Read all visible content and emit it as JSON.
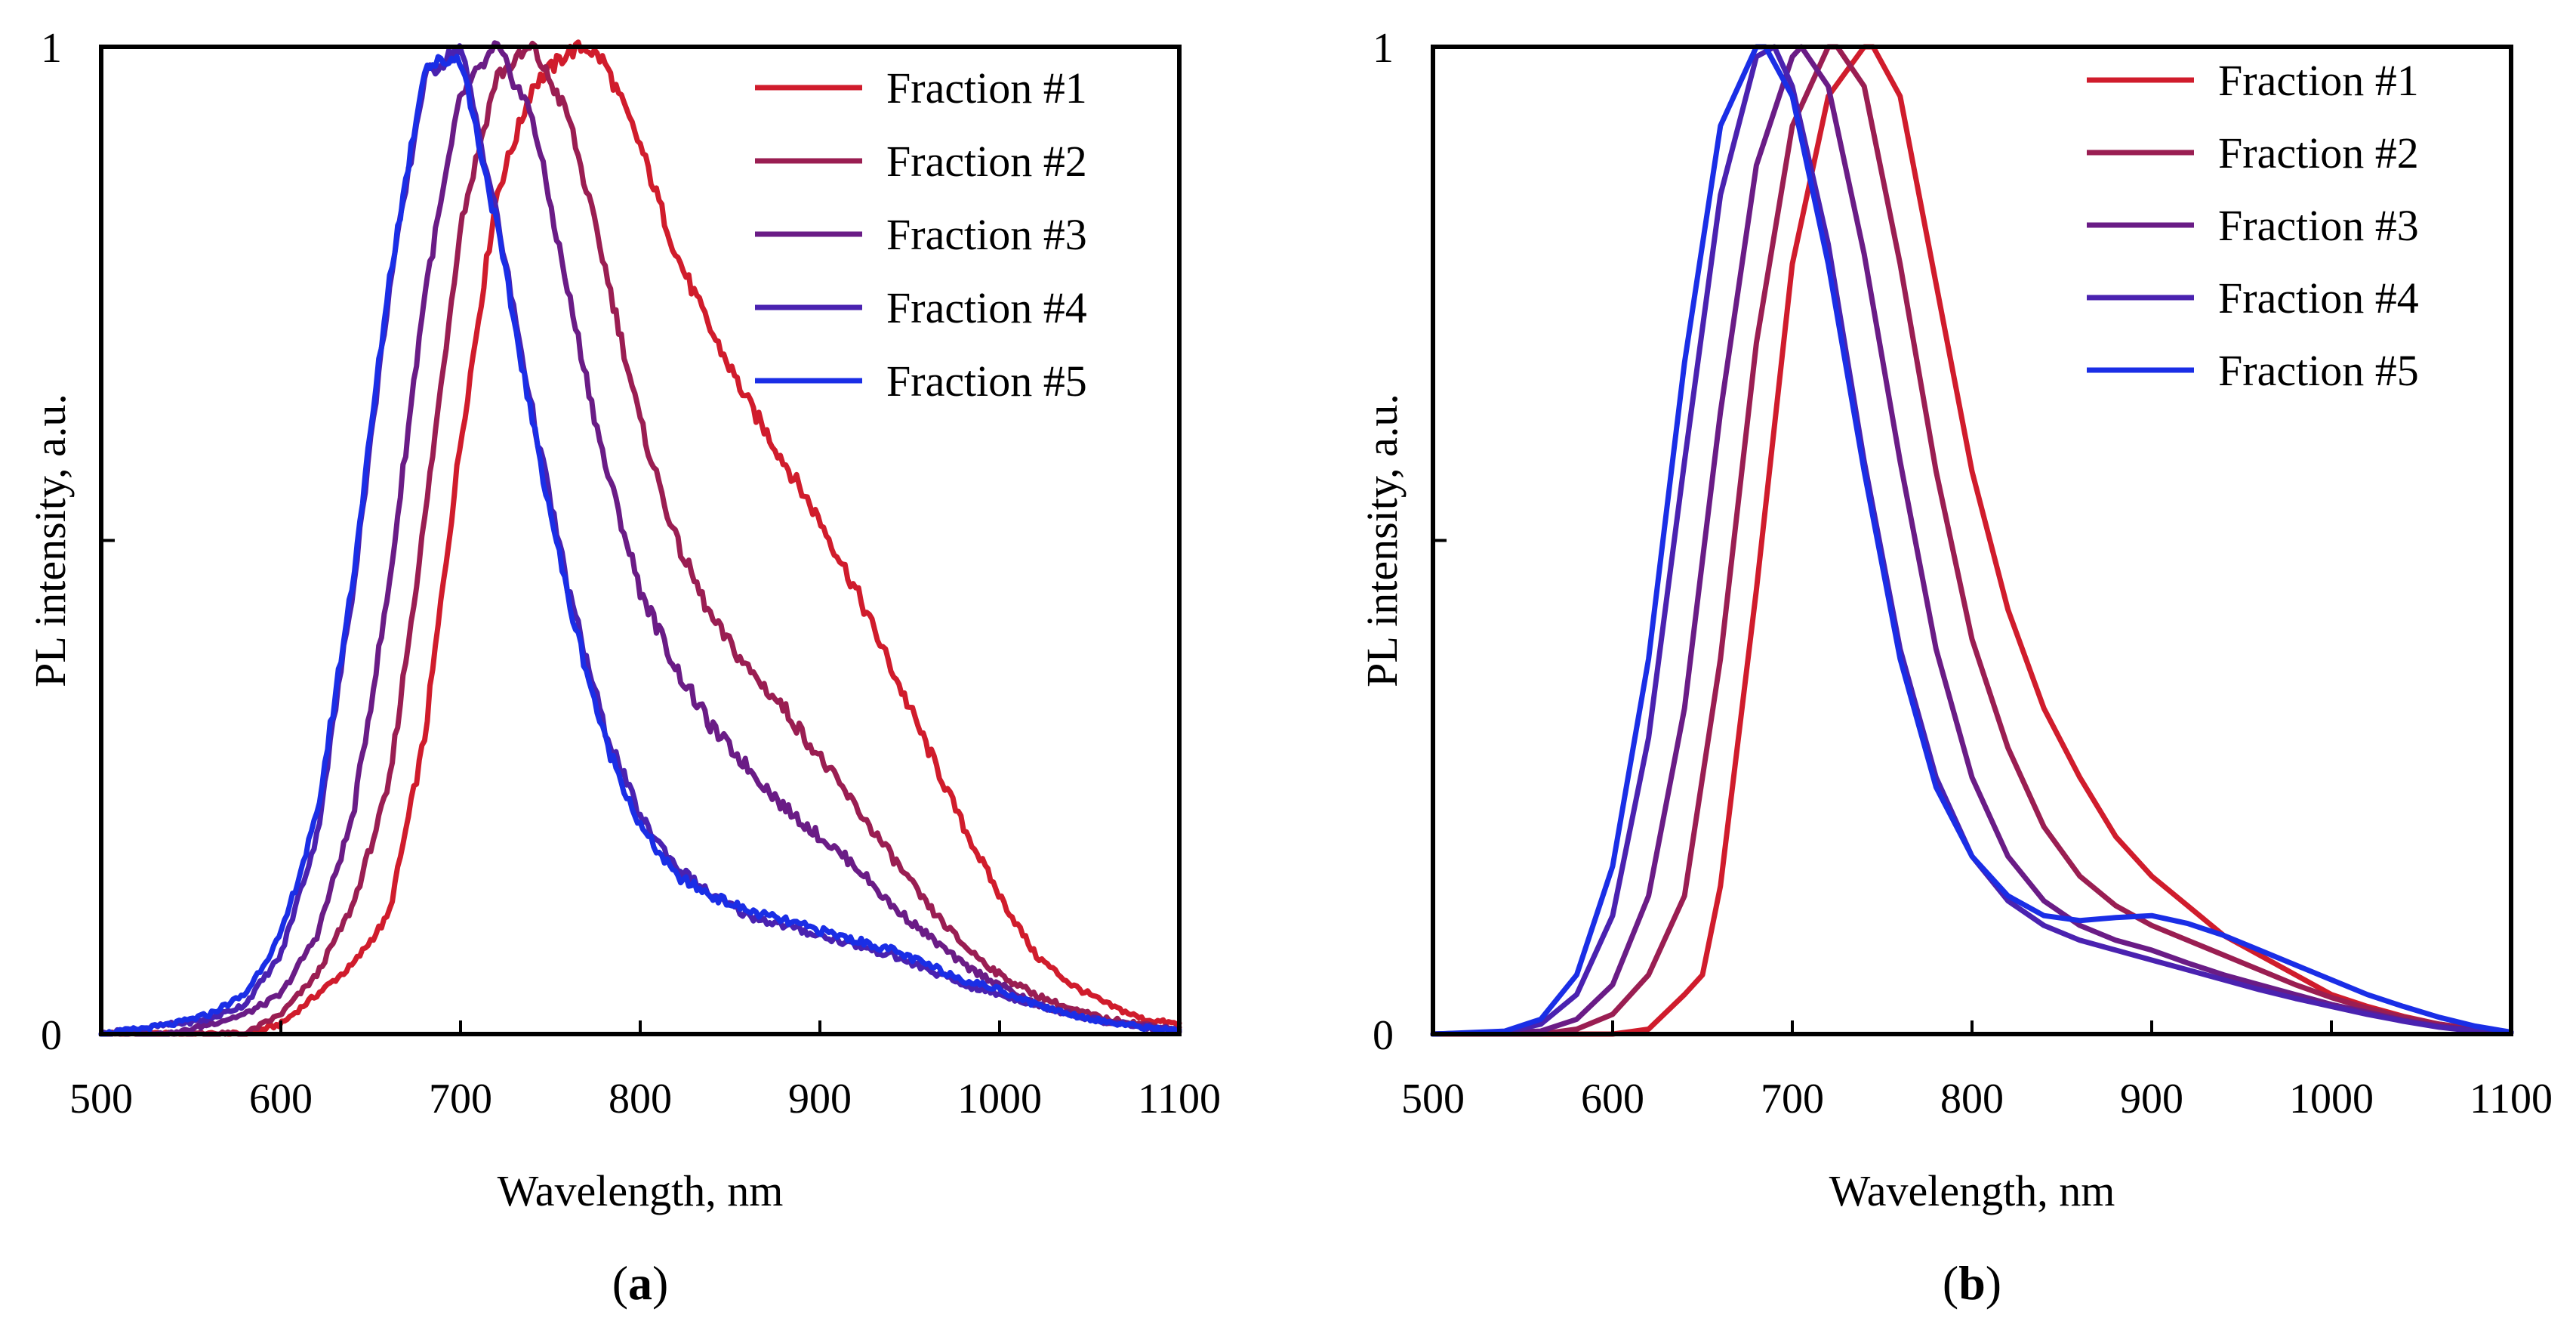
{
  "figure": {
    "panels": [
      "a",
      "b"
    ]
  },
  "chart_data": [
    {
      "panel": "a",
      "type": "line",
      "panel_label_open": "(",
      "panel_label_letter": "a",
      "panel_label_close": ")",
      "xlabel": "Wavelength, nm",
      "ylabel": "PL intensity, a.u.",
      "xlim": [
        500,
        1100
      ],
      "ylim": [
        0,
        1
      ],
      "xticks": [
        500,
        600,
        700,
        800,
        900,
        1000,
        1100
      ],
      "yticks": [
        0,
        0.5,
        1
      ],
      "ytick_labels": [
        "0",
        "",
        "1"
      ],
      "legend_position": "top-right",
      "noisy": true,
      "series": [
        {
          "name": "Fraction #1",
          "color": "#d01c2c",
          "x": [
            500,
            540,
            580,
            600,
            620,
            640,
            660,
            680,
            700,
            720,
            740,
            760,
            770,
            780,
            800,
            820,
            840,
            860,
            880,
            900,
            920,
            940,
            960,
            980,
            1000,
            1020,
            1040,
            1060,
            1080,
            1100
          ],
          "y": [
            0,
            0,
            0,
            0.01,
            0.04,
            0.07,
            0.12,
            0.3,
            0.6,
            0.85,
            0.96,
            0.995,
            1.0,
            0.985,
            0.9,
            0.79,
            0.71,
            0.64,
            0.58,
            0.52,
            0.45,
            0.37,
            0.29,
            0.21,
            0.14,
            0.08,
            0.05,
            0.03,
            0.015,
            0.01
          ]
        },
        {
          "name": "Fraction #2",
          "color": "#9a1e52",
          "x": [
            500,
            540,
            580,
            600,
            620,
            640,
            660,
            680,
            700,
            720,
            740,
            760,
            780,
            800,
            820,
            840,
            860,
            880,
            900,
            920,
            940,
            960,
            980,
            1000,
            1020,
            1040,
            1060,
            1080,
            1100
          ],
          "y": [
            0,
            0,
            0,
            0.02,
            0.06,
            0.13,
            0.25,
            0.52,
            0.82,
            0.97,
            1.0,
            0.93,
            0.78,
            0.62,
            0.5,
            0.42,
            0.37,
            0.33,
            0.28,
            0.23,
            0.18,
            0.13,
            0.09,
            0.06,
            0.04,
            0.025,
            0.015,
            0.01,
            0.005
          ]
        },
        {
          "name": "Fraction #3",
          "color": "#6a1c86",
          "x": [
            500,
            540,
            580,
            600,
            620,
            640,
            660,
            680,
            700,
            720,
            740,
            760,
            780,
            800,
            820,
            840,
            860,
            880,
            900,
            920,
            940,
            960,
            980,
            1000,
            1020,
            1040,
            1060,
            1080,
            1100
          ],
          "y": [
            0,
            0,
            0.02,
            0.04,
            0.1,
            0.22,
            0.45,
            0.75,
            0.95,
            1.0,
            0.93,
            0.75,
            0.58,
            0.45,
            0.37,
            0.31,
            0.27,
            0.23,
            0.2,
            0.17,
            0.13,
            0.1,
            0.07,
            0.05,
            0.03,
            0.02,
            0.012,
            0.008,
            0.004
          ]
        },
        {
          "name": "Fraction #4",
          "color": "#4a22b0",
          "x": [
            500,
            540,
            560,
            580,
            600,
            620,
            640,
            660,
            680,
            700,
            720,
            740,
            760,
            780,
            800,
            820,
            840,
            860,
            880,
            900,
            920,
            940,
            960,
            980,
            1000,
            1020,
            1040,
            1060,
            1080,
            1100
          ],
          "y": [
            0,
            0.01,
            0.015,
            0.03,
            0.08,
            0.2,
            0.45,
            0.75,
            0.97,
            1.0,
            0.83,
            0.63,
            0.45,
            0.31,
            0.22,
            0.17,
            0.14,
            0.12,
            0.11,
            0.1,
            0.09,
            0.08,
            0.065,
            0.05,
            0.04,
            0.03,
            0.02,
            0.012,
            0.007,
            0.003
          ]
        },
        {
          "name": "Fraction #5",
          "color": "#1a2ee6",
          "x": [
            500,
            540,
            560,
            580,
            600,
            620,
            640,
            660,
            680,
            700,
            720,
            740,
            760,
            780,
            800,
            820,
            840,
            860,
            880,
            900,
            920,
            940,
            960,
            980,
            1000,
            1020,
            1040,
            1060,
            1080,
            1100
          ],
          "y": [
            0,
            0.01,
            0.02,
            0.04,
            0.1,
            0.22,
            0.46,
            0.76,
            0.98,
            0.99,
            0.82,
            0.62,
            0.44,
            0.3,
            0.21,
            0.16,
            0.14,
            0.125,
            0.115,
            0.105,
            0.095,
            0.085,
            0.07,
            0.055,
            0.045,
            0.03,
            0.02,
            0.012,
            0.007,
            0.003
          ]
        }
      ]
    },
    {
      "panel": "b",
      "type": "line",
      "panel_label_open": "(",
      "panel_label_letter": "b",
      "panel_label_close": ")",
      "xlabel": "Wavelength, nm",
      "ylabel": "PL intensity, a.u.",
      "xlim": [
        500,
        1100
      ],
      "ylim": [
        0,
        1
      ],
      "xticks": [
        500,
        600,
        700,
        800,
        900,
        1000,
        1100
      ],
      "yticks": [
        0,
        0.5,
        1
      ],
      "ytick_labels": [
        "0",
        "",
        "1"
      ],
      "legend_position": "top-right",
      "noisy": false,
      "series": [
        {
          "name": "Fraction #1",
          "color": "#d01c2c",
          "x": [
            500,
            560,
            600,
            620,
            640,
            650,
            660,
            680,
            700,
            720,
            740,
            745,
            760,
            780,
            800,
            820,
            840,
            860,
            880,
            900,
            920,
            940,
            960,
            980,
            1000,
            1020,
            1040,
            1060,
            1080,
            1100
          ],
          "y": [
            0,
            0,
            0,
            0.005,
            0.04,
            0.06,
            0.15,
            0.45,
            0.78,
            0.95,
            1.0,
            1.0,
            0.95,
            0.76,
            0.57,
            0.43,
            0.33,
            0.26,
            0.2,
            0.16,
            0.13,
            0.1,
            0.08,
            0.06,
            0.04,
            0.028,
            0.018,
            0.01,
            0.005,
            0.002
          ]
        },
        {
          "name": "Fraction #2",
          "color": "#9a1e52",
          "x": [
            500,
            560,
            580,
            600,
            620,
            640,
            660,
            680,
            700,
            720,
            725,
            740,
            760,
            780,
            800,
            820,
            840,
            860,
            880,
            900,
            920,
            940,
            960,
            980,
            1000,
            1020,
            1040,
            1060,
            1080,
            1100
          ],
          "y": [
            0,
            0,
            0.005,
            0.02,
            0.06,
            0.14,
            0.38,
            0.7,
            0.92,
            1.0,
            1.0,
            0.96,
            0.78,
            0.57,
            0.4,
            0.29,
            0.21,
            0.16,
            0.13,
            0.11,
            0.095,
            0.08,
            0.065,
            0.05,
            0.037,
            0.026,
            0.017,
            0.01,
            0.005,
            0.002
          ]
        },
        {
          "name": "Fraction #3",
          "color": "#6a1c86",
          "x": [
            500,
            560,
            580,
            600,
            620,
            640,
            660,
            680,
            700,
            705,
            720,
            740,
            760,
            780,
            800,
            820,
            840,
            860,
            880,
            900,
            920,
            940,
            960,
            980,
            1000,
            1020,
            1040,
            1060,
            1080,
            1100
          ],
          "y": [
            0,
            0.003,
            0.015,
            0.05,
            0.14,
            0.33,
            0.63,
            0.88,
            0.99,
            1.0,
            0.96,
            0.79,
            0.58,
            0.39,
            0.26,
            0.18,
            0.135,
            0.11,
            0.095,
            0.085,
            0.072,
            0.06,
            0.05,
            0.04,
            0.03,
            0.022,
            0.014,
            0.008,
            0.004,
            0.002
          ]
        },
        {
          "name": "Fraction #4",
          "color": "#4a22b0",
          "x": [
            500,
            540,
            560,
            580,
            600,
            620,
            640,
            660,
            680,
            690,
            700,
            720,
            740,
            760,
            780,
            800,
            820,
            840,
            860,
            880,
            900,
            920,
            940,
            960,
            980,
            1000,
            1020,
            1040,
            1060,
            1080,
            1100
          ],
          "y": [
            0,
            0.002,
            0.01,
            0.04,
            0.12,
            0.3,
            0.58,
            0.85,
            0.99,
            1.0,
            0.96,
            0.8,
            0.58,
            0.39,
            0.26,
            0.18,
            0.135,
            0.11,
            0.095,
            0.085,
            0.075,
            0.065,
            0.055,
            0.045,
            0.036,
            0.028,
            0.02,
            0.013,
            0.007,
            0.003,
            0.001
          ]
        },
        {
          "name": "Fraction #5",
          "color": "#1a2ee6",
          "x": [
            500,
            540,
            560,
            580,
            600,
            620,
            640,
            660,
            680,
            685,
            700,
            720,
            740,
            760,
            780,
            800,
            820,
            840,
            860,
            880,
            900,
            920,
            940,
            960,
            980,
            1000,
            1020,
            1040,
            1060,
            1080,
            1100
          ],
          "y": [
            0,
            0.003,
            0.015,
            0.06,
            0.17,
            0.38,
            0.68,
            0.92,
            1.0,
            1.0,
            0.95,
            0.78,
            0.57,
            0.38,
            0.25,
            0.18,
            0.14,
            0.12,
            0.115,
            0.118,
            0.12,
            0.112,
            0.1,
            0.085,
            0.07,
            0.055,
            0.04,
            0.028,
            0.017,
            0.008,
            0.002
          ]
        }
      ]
    }
  ]
}
